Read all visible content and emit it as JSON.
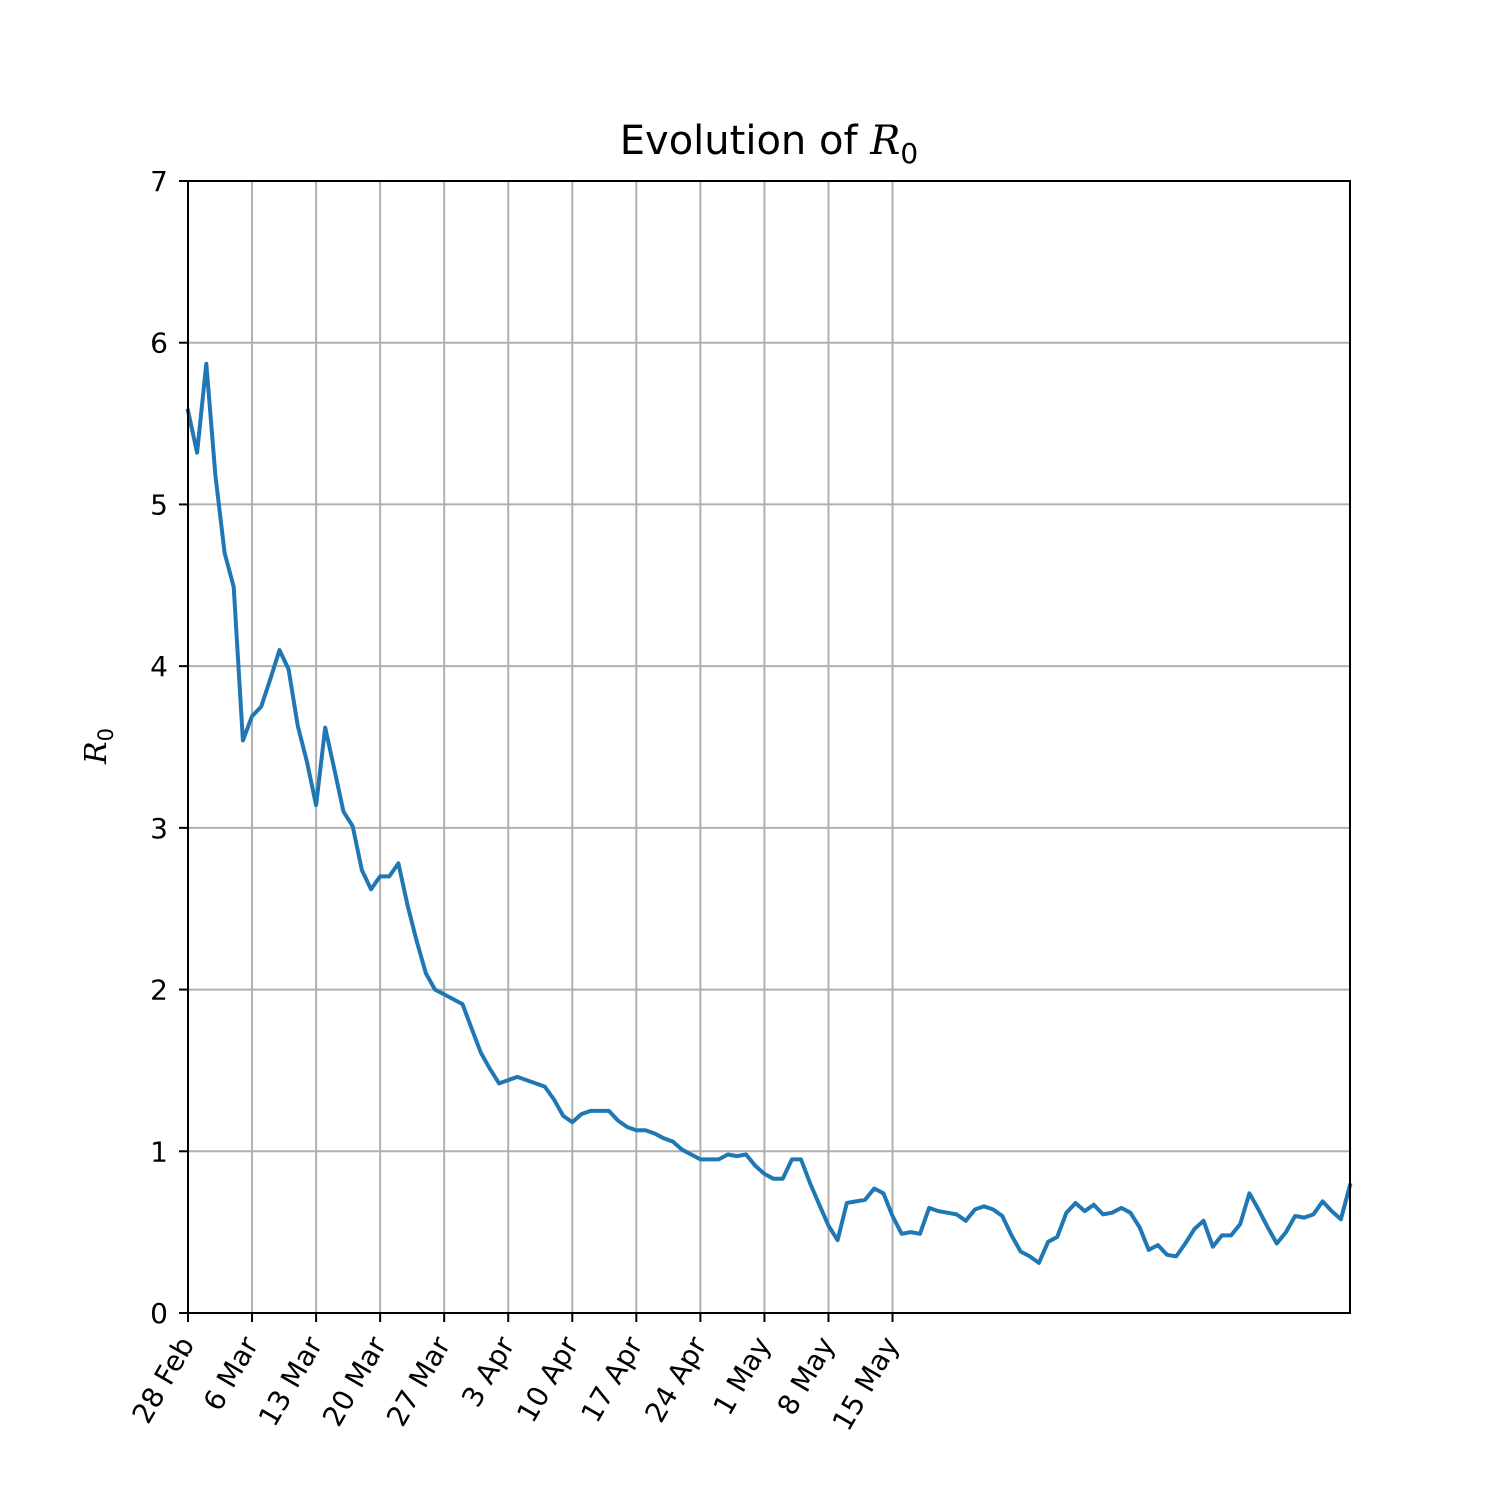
{
  "chart_data": {
    "type": "line",
    "title": {
      "prefix": "Evolution of ",
      "symbol": "R",
      "subscript": "0"
    },
    "ylabel": {
      "symbol": "R",
      "subscript": "0"
    },
    "xlabel": "",
    "x_start": "28 Feb",
    "xlim_days": [
      0,
      127
    ],
    "ylim": [
      0,
      7
    ],
    "grid": true,
    "x_ticks": [
      {
        "day": 0,
        "label": "28 Feb"
      },
      {
        "day": 7,
        "label": "6 Mar"
      },
      {
        "day": 14,
        "label": "13 Mar"
      },
      {
        "day": 21,
        "label": "20 Mar"
      },
      {
        "day": 28,
        "label": "27 Mar"
      },
      {
        "day": 35,
        "label": "3 Apr"
      },
      {
        "day": 42,
        "label": "10 Apr"
      },
      {
        "day": 49,
        "label": "17 Apr"
      },
      {
        "day": 56,
        "label": "24 Apr"
      },
      {
        "day": 63,
        "label": "1 May"
      },
      {
        "day": 70,
        "label": "8 May"
      },
      {
        "day": 77,
        "label": "15 May"
      }
    ],
    "y_ticks": [
      0,
      1,
      2,
      3,
      4,
      5,
      6,
      7
    ],
    "series": [
      {
        "color": "#1f77b4",
        "values": [
          5.58,
          5.32,
          5.87,
          5.18,
          4.7,
          4.49,
          3.54,
          3.69,
          3.75,
          3.92,
          4.1,
          3.98,
          3.63,
          3.41,
          3.14,
          3.62,
          3.36,
          3.1,
          3.01,
          2.74,
          2.62,
          2.7,
          2.7,
          2.78,
          2.52,
          2.3,
          2.1,
          2.0,
          1.97,
          1.94,
          1.91,
          1.76,
          1.61,
          1.51,
          1.42,
          1.44,
          1.46,
          1.44,
          1.42,
          1.4,
          1.32,
          1.22,
          1.18,
          1.23,
          1.25,
          1.25,
          1.25,
          1.19,
          1.15,
          1.13,
          1.13,
          1.11,
          1.08,
          1.06,
          1.01,
          0.98,
          0.95,
          0.95,
          0.95,
          0.98,
          0.97,
          0.98,
          0.91,
          0.86,
          0.83,
          0.83,
          0.95,
          0.95,
          0.8,
          0.67,
          0.54,
          0.45,
          0.68,
          0.69,
          0.7,
          0.77,
          0.74,
          0.6,
          0.49,
          0.5,
          0.49,
          0.65,
          0.63,
          0.62,
          0.61,
          0.57,
          0.64,
          0.66,
          0.64,
          0.6,
          0.48,
          0.38,
          0.35,
          0.31,
          0.44,
          0.47,
          0.62,
          0.68,
          0.63,
          0.67,
          0.61,
          0.62,
          0.65,
          0.62,
          0.53,
          0.39,
          0.42,
          0.36,
          0.35,
          0.43,
          0.52,
          0.57,
          0.41,
          0.48,
          0.48,
          0.55,
          0.74,
          0.64,
          0.53,
          0.43,
          0.5,
          0.6,
          0.59,
          0.61,
          0.69,
          0.63,
          0.58,
          0.79
        ]
      }
    ]
  }
}
